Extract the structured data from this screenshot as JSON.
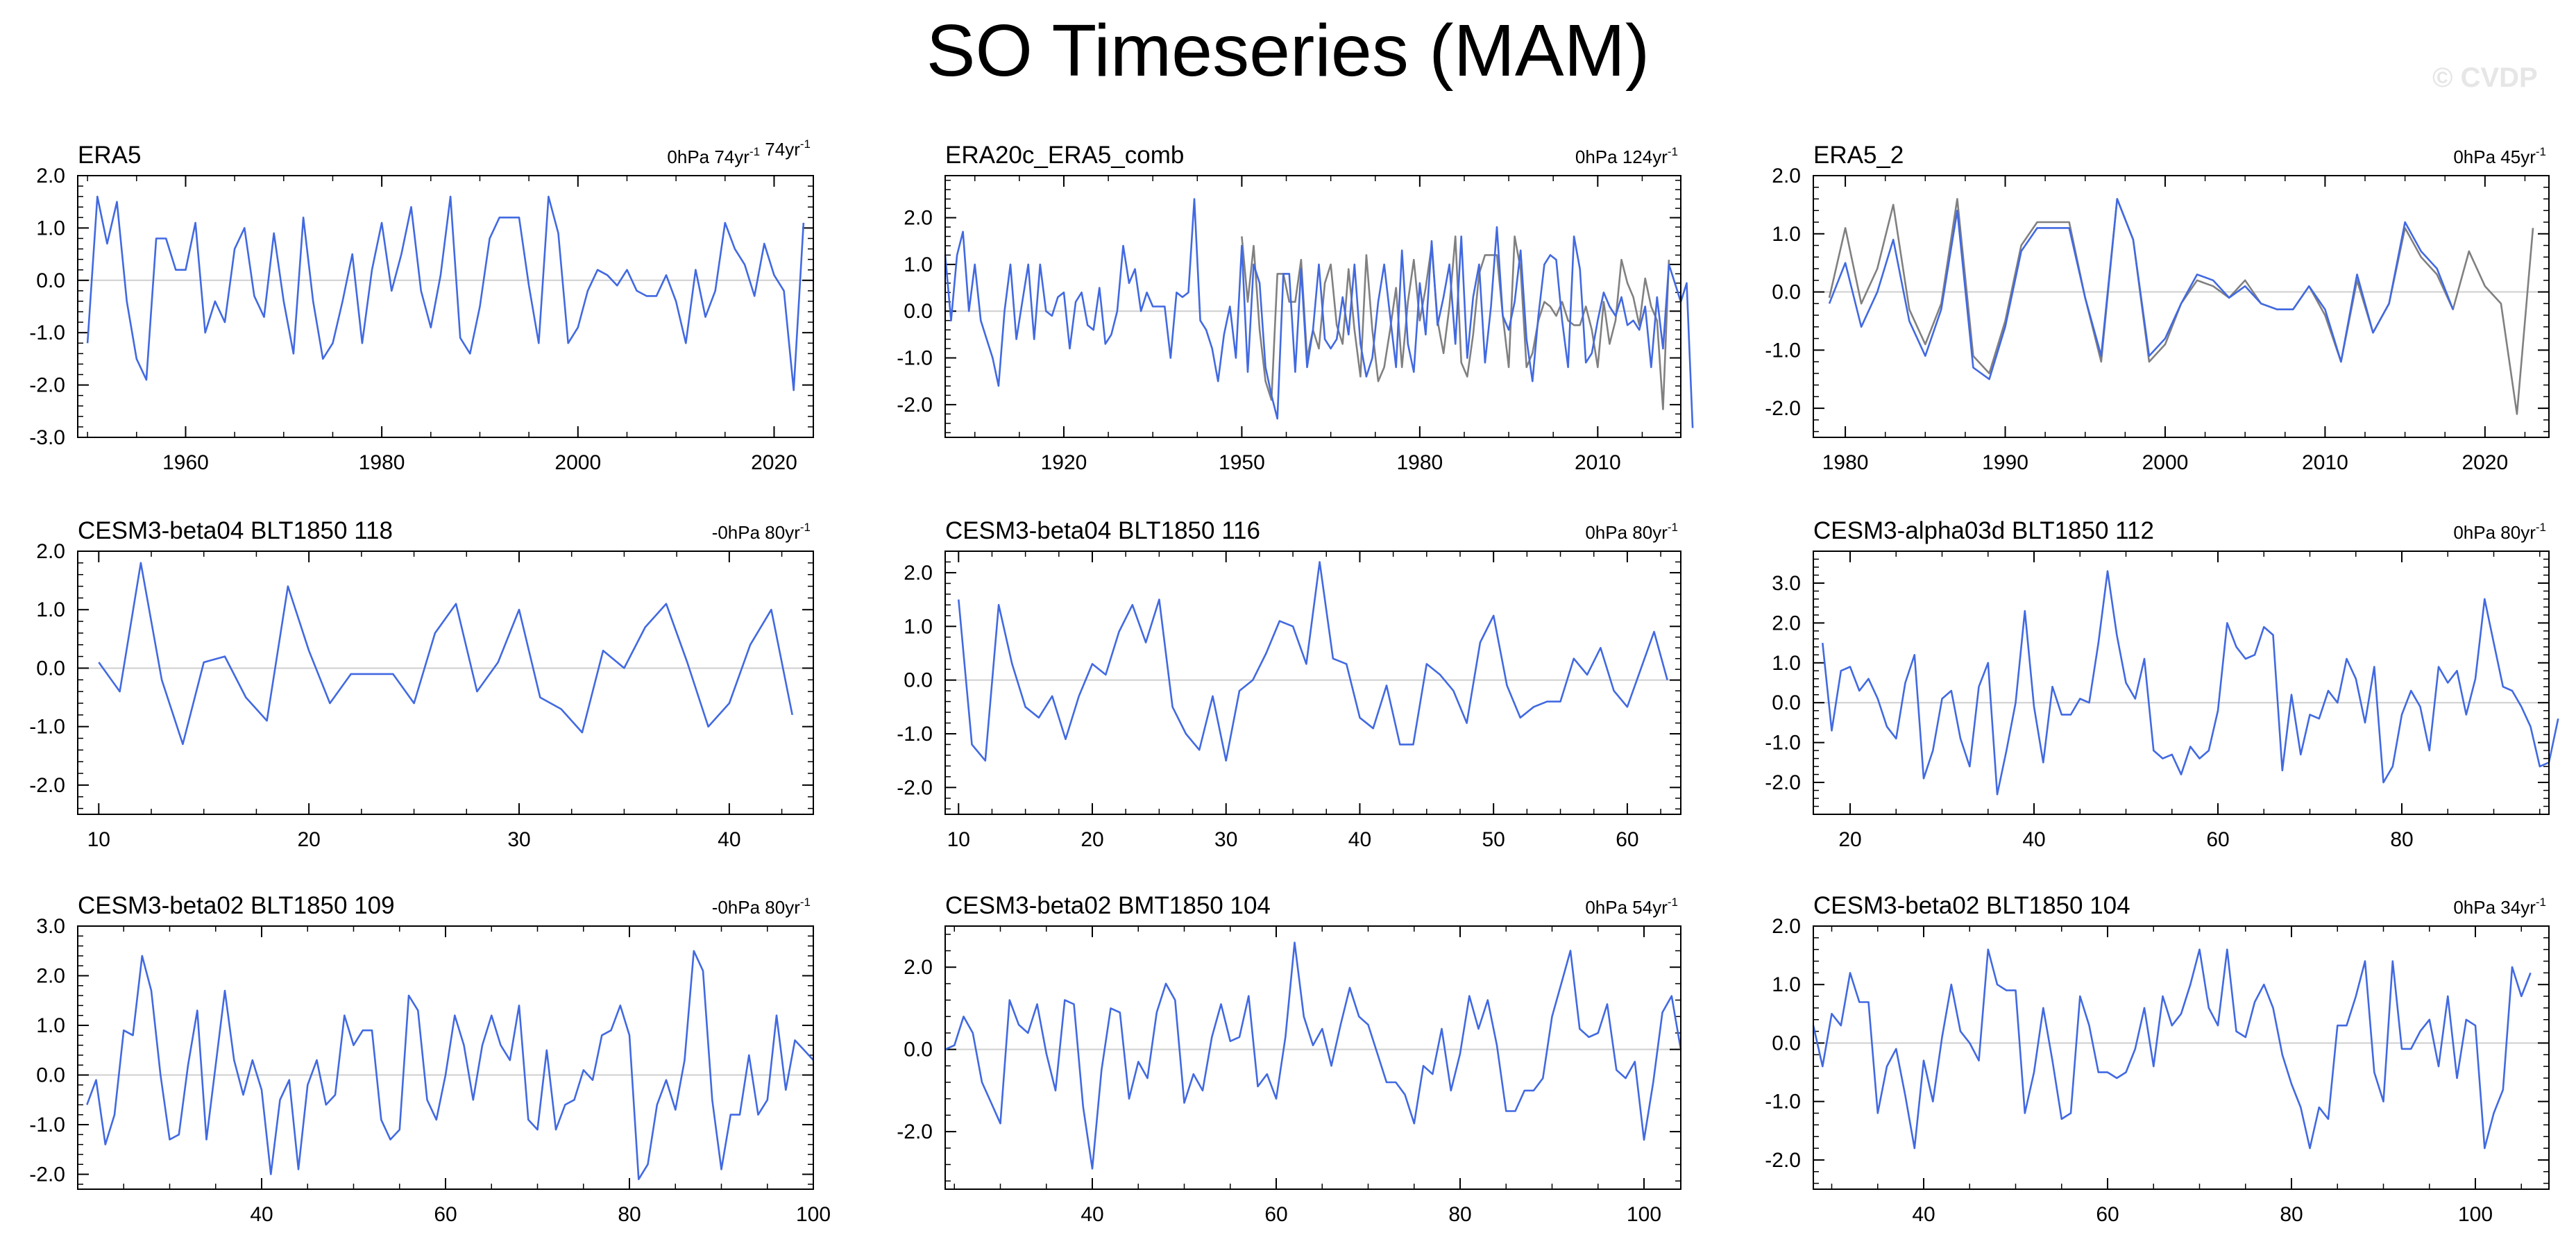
{
  "title": "SO Timeseries (MAM)",
  "credit": "© CVDP",
  "colors": {
    "line": "#4169e1",
    "overlay": "#808080",
    "zero": "#cfcfcf",
    "axis": "#000000"
  },
  "chart_data": [
    {
      "type": "line",
      "title": "ERA5",
      "info": "0hPa 74yr⁻¹ 74yr⁻¹",
      "xlim": [
        1949,
        2024
      ],
      "ylim": [
        -3.0,
        2.0
      ],
      "xticks": [
        1960,
        1980,
        2000,
        2020
      ],
      "yticks": [
        2.0,
        1.0,
        0.0,
        -1.0,
        -2.0,
        -3.0
      ],
      "ytick_labels": [
        "2.0",
        "1.0",
        "0.0",
        "-1.0",
        "-2.0",
        "-3.0"
      ],
      "series": [
        {
          "x_start": 1950,
          "values": [
            -1.2,
            1.6,
            0.7,
            1.5,
            -0.4,
            -1.5,
            -1.9,
            0.8,
            0.8,
            0.2,
            0.2,
            1.1,
            -1.0,
            -0.4,
            -0.8,
            0.6,
            1.0,
            -0.3,
            -0.7,
            0.9,
            -0.4,
            -1.4,
            1.2,
            -0.4,
            -1.5,
            -1.2,
            -0.4,
            0.5,
            -1.2,
            0.2,
            1.1,
            -0.2,
            0.5,
            1.4,
            -0.2,
            -0.9,
            0.1,
            1.6,
            -1.1,
            -1.4,
            -0.5,
            0.8,
            1.2,
            1.2,
            1.2,
            -0.1,
            -1.2,
            1.6,
            0.9,
            -1.2,
            -0.9,
            -0.2,
            0.2,
            0.1,
            -0.1,
            0.2,
            -0.2,
            -0.3,
            -0.3,
            0.1,
            -0.4,
            -1.2,
            0.2,
            -0.7,
            -0.2,
            1.1,
            0.6,
            0.3,
            -0.3,
            0.7,
            0.1,
            -0.2,
            -2.1,
            1.1
          ]
        }
      ]
    },
    {
      "type": "line",
      "title": "ERA20c_ERA5_comb",
      "info": "0hPa 124yr⁻¹",
      "xlim": [
        1900,
        2024
      ],
      "ylim": [
        -2.7,
        2.9
      ],
      "xticks": [
        1920,
        1950,
        1980,
        2010
      ],
      "yticks": [
        2.0,
        1.0,
        0.0,
        -1.0,
        -2.0
      ],
      "ytick_labels": [
        "2.0",
        "1.0",
        "0.0",
        "-1.0",
        "-2.0"
      ],
      "series": [
        {
          "x_start": 1900,
          "values": [
            1.2,
            -0.2,
            1.2,
            1.7,
            0.0,
            1.0,
            -0.2,
            -0.6,
            -1.0,
            -1.6,
            0.0,
            1.0,
            -0.6,
            0.2,
            1.0,
            -0.6,
            1.0,
            0.0,
            -0.1,
            0.3,
            0.4,
            -0.8,
            0.2,
            0.4,
            -0.3,
            -0.4,
            0.5,
            -0.7,
            -0.5,
            0.0,
            1.4,
            0.6,
            0.9,
            0.0,
            0.4,
            0.1,
            0.1,
            0.1,
            -1.0,
            0.4,
            0.3,
            0.4,
            2.4,
            -0.2,
            -0.4,
            -0.8,
            -1.5,
            -0.5,
            0.1,
            -1.0,
            1.4,
            -1.3,
            1.0,
            0.6,
            -1.2,
            -1.8,
            -2.3,
            0.8,
            0.8,
            -1.3,
            0.9,
            -1.2,
            -0.4,
            1.0,
            -0.6,
            -0.8,
            -0.6,
            0.3,
            -0.5,
            1.0,
            -0.7,
            -1.4,
            -1.0,
            0.2,
            1.0,
            -0.1,
            -1.2,
            1.3,
            -0.7,
            -1.3,
            0.6,
            -0.5,
            1.5,
            -0.3,
            0.3,
            1.0,
            -0.7,
            1.6,
            -1.0,
            0.3,
            1.0,
            -1.1,
            0.1,
            1.8,
            -0.1,
            -0.4,
            0.2,
            1.3,
            -0.6,
            -1.5,
            -0.1,
            1.0,
            1.2,
            1.1,
            -0.2,
            -1.2,
            1.6,
            0.9,
            -1.1,
            -0.9,
            -0.2,
            0.4,
            0.1,
            -0.1,
            0.3,
            -0.3,
            -0.2,
            -0.4,
            0.1,
            -1.2,
            0.3,
            -0.8,
            1.0,
            0.6,
            0.2,
            0.6,
            -2.5
          ]
        },
        {
          "x_start": 1950,
          "values": [
            1.6,
            0.2,
            1.4,
            -0.4,
            -1.5,
            -1.9,
            0.8,
            0.8,
            0.2,
            0.2,
            1.1,
            -1.0,
            -0.4,
            -0.8,
            0.6,
            1.0,
            -0.3,
            -0.7,
            0.9,
            -0.4,
            -1.4,
            1.2,
            -0.4,
            -1.5,
            -1.2,
            -0.4,
            0.5,
            -1.2,
            0.2,
            1.1,
            -0.2,
            0.5,
            1.4,
            -0.2,
            -0.9,
            0.1,
            1.6,
            -1.1,
            -1.4,
            -0.5,
            0.8,
            1.2,
            1.2,
            1.2,
            -0.1,
            -1.2,
            1.6,
            0.9,
            -1.2,
            -0.9,
            -0.2,
            0.2,
            0.1,
            -0.1,
            0.2,
            -0.2,
            -0.3,
            -0.3,
            0.1,
            -0.4,
            -1.2,
            0.2,
            -0.7,
            -0.2,
            1.1,
            0.6,
            0.3,
            -0.3,
            0.7,
            0.1,
            -0.2,
            -2.1,
            1.1
          ]
        }
      ]
    },
    {
      "type": "line",
      "title": "ERA5_2",
      "info": "0hPa 45yr⁻¹",
      "xlim": [
        1978,
        2024
      ],
      "ylim": [
        -2.5,
        2.0
      ],
      "xticks": [
        1980,
        1990,
        2000,
        2010,
        2020
      ],
      "yticks": [
        2.0,
        1.0,
        0.0,
        -1.0,
        -2.0
      ],
      "ytick_labels": [
        "2.0",
        "1.0",
        "0.0",
        "-1.0",
        "-2.0"
      ],
      "series": [
        {
          "x_start": 1979,
          "values": [
            -0.2,
            0.5,
            -0.6,
            0.0,
            0.9,
            -0.5,
            -1.1,
            -0.3,
            1.4,
            -1.3,
            -1.5,
            -0.6,
            0.7,
            1.1,
            1.1,
            1.1,
            -0.1,
            -1.1,
            1.6,
            0.9,
            -1.1,
            -0.8,
            -0.2,
            0.3,
            0.2,
            -0.1,
            0.1,
            -0.2,
            -0.3,
            -0.3,
            0.1,
            -0.3,
            -1.2,
            0.3,
            -0.7,
            -0.2,
            1.2,
            0.7,
            0.4,
            -0.3
          ]
        },
        {
          "x_start": 1979,
          "values": [
            -0.1,
            1.1,
            -0.2,
            0.4,
            1.5,
            -0.3,
            -0.9,
            -0.2,
            1.6,
            -1.1,
            -1.4,
            -0.5,
            0.8,
            1.2,
            1.2,
            1.2,
            -0.1,
            -1.2,
            1.6,
            0.9,
            -1.2,
            -0.9,
            -0.2,
            0.2,
            0.1,
            -0.1,
            0.2,
            -0.2,
            -0.3,
            -0.3,
            0.1,
            -0.4,
            -1.2,
            0.2,
            -0.7,
            -0.2,
            1.1,
            0.6,
            0.3,
            -0.3,
            0.7,
            0.1,
            -0.2,
            -2.1,
            1.1
          ]
        }
      ]
    },
    {
      "type": "line",
      "title": "CESM3-beta04 BLT1850 118",
      "info": "-0hPa 80yr⁻¹",
      "xlim": [
        9,
        44
      ],
      "ylim": [
        -2.5,
        2.0
      ],
      "xticks": [
        10,
        20,
        30,
        40
      ],
      "yticks": [
        2.0,
        1.0,
        0.0,
        -1.0,
        -2.0
      ],
      "ytick_labels": [
        "2.0",
        "1.0",
        "0.0",
        "-1.0",
        "-2.0"
      ],
      "series": [
        {
          "x_start": 10,
          "values": [
            0.1,
            -0.4,
            1.8,
            -0.2,
            -1.3,
            0.1,
            0.2,
            -0.5,
            -0.9,
            1.4,
            0.3,
            -0.6,
            -0.1,
            -0.1,
            -0.1,
            -0.6,
            0.6,
            1.1,
            -0.4,
            0.1,
            1.0,
            -0.5,
            -0.7,
            -1.1,
            0.3,
            0.0,
            0.7,
            1.1,
            0.1,
            -1.0,
            -0.6,
            0.4,
            1.0,
            -0.8
          ]
        }
      ]
    },
    {
      "type": "line",
      "title": "CESM3-beta04 BLT1850 116",
      "info": "0hPa 80yr⁻¹",
      "xlim": [
        9,
        64
      ],
      "ylim": [
        -2.5,
        2.4
      ],
      "xticks": [
        10,
        20,
        30,
        40,
        50,
        60
      ],
      "yticks": [
        2.0,
        1.0,
        0.0,
        -1.0,
        -2.0
      ],
      "ytick_labels": [
        "2.0",
        "1.0",
        "0.0",
        "-1.0",
        "-2.0"
      ],
      "series": [
        {
          "x_start": 10,
          "values": [
            1.5,
            -1.2,
            -1.5,
            1.4,
            0.3,
            -0.5,
            -0.7,
            -0.3,
            -1.1,
            -0.3,
            0.3,
            0.1,
            0.9,
            1.4,
            0.7,
            1.5,
            -0.5,
            -1.0,
            -1.3,
            -0.3,
            -1.5,
            -0.2,
            0.0,
            0.5,
            1.1,
            1.0,
            0.3,
            2.2,
            0.4,
            0.3,
            -0.7,
            -0.9,
            -0.1,
            -1.2,
            -1.2,
            0.3,
            0.1,
            -0.2,
            -0.8,
            0.7,
            1.2,
            -0.1,
            -0.7,
            -0.5,
            -0.4,
            -0.4,
            0.4,
            0.1,
            0.6,
            -0.2,
            -0.5,
            0.2,
            0.9,
            0.0
          ]
        }
      ]
    },
    {
      "type": "line",
      "title": "CESM3-alpha03d BLT1850 112",
      "info": "0hPa 80yr⁻¹",
      "xlim": [
        16,
        96
      ],
      "ylim": [
        -2.8,
        3.8
      ],
      "xticks": [
        20,
        40,
        60,
        80
      ],
      "yticks": [
        3.0,
        2.0,
        1.0,
        0.0,
        -1.0,
        -2.0
      ],
      "ytick_labels": [
        "3.0",
        "2.0",
        "1.0",
        "0.0",
        "-1.0",
        "-2.0"
      ],
      "series": [
        {
          "x_start": 17,
          "values": [
            1.5,
            -0.7,
            0.8,
            0.9,
            0.3,
            0.6,
            0.1,
            -0.6,
            -0.9,
            0.5,
            1.2,
            -1.9,
            -1.2,
            0.1,
            0.3,
            -0.9,
            -1.6,
            0.4,
            1.0,
            -2.3,
            -1.2,
            0.0,
            2.3,
            -0.1,
            -1.5,
            0.4,
            -0.3,
            -0.3,
            0.1,
            0.0,
            1.5,
            3.3,
            1.7,
            0.5,
            0.1,
            1.1,
            -1.2,
            -1.4,
            -1.3,
            -1.8,
            -1.1,
            -1.4,
            -1.2,
            -0.2,
            2.0,
            1.4,
            1.1,
            1.2,
            1.9,
            1.7,
            -1.7,
            0.2,
            -1.3,
            -0.3,
            -0.4,
            0.3,
            0.0,
            1.1,
            0.6,
            -0.5,
            0.9,
            -2.0,
            -1.6,
            -0.3,
            0.3,
            -0.1,
            -1.2,
            0.9,
            0.5,
            0.8,
            -0.3,
            0.6,
            2.6,
            1.5,
            0.4,
            0.3,
            -0.1,
            -0.6,
            -1.6,
            -1.5,
            -0.4
          ]
        }
      ]
    },
    {
      "type": "line",
      "title": "CESM3-beta02 BLT1850 109",
      "info": "-0hPa 80yr⁻¹",
      "xlim": [
        20,
        100
      ],
      "ylim": [
        -2.3,
        3.0
      ],
      "xticks": [
        40,
        60,
        80,
        100
      ],
      "yticks": [
        3.0,
        2.0,
        1.0,
        0.0,
        -1.0,
        -2.0
      ],
      "ytick_labels": [
        "3.0",
        "2.0",
        "1.0",
        "0.0",
        "-1.0",
        "-2.0"
      ],
      "series": [
        {
          "x_start": 21,
          "values": [
            -0.6,
            -0.1,
            -1.4,
            -0.8,
            0.9,
            0.8,
            2.4,
            1.7,
            0.0,
            -1.3,
            -1.2,
            0.2,
            1.3,
            -1.3,
            0.2,
            1.7,
            0.3,
            -0.4,
            0.3,
            -0.3,
            -2.0,
            -0.5,
            -0.1,
            -1.9,
            -0.2,
            0.3,
            -0.6,
            -0.4,
            1.2,
            0.6,
            0.9,
            0.9,
            -0.9,
            -1.3,
            -1.1,
            1.6,
            1.3,
            -0.5,
            -0.9,
            0.0,
            1.2,
            0.6,
            -0.5,
            0.6,
            1.2,
            0.6,
            0.3,
            1.4,
            -0.9,
            -1.1,
            0.5,
            -1.1,
            -0.6,
            -0.5,
            0.1,
            -0.1,
            0.8,
            0.9,
            1.4,
            0.8,
            -2.1,
            -1.8,
            -0.6,
            -0.1,
            -0.7,
            0.3,
            2.5,
            2.1,
            -0.5,
            -1.9,
            -0.8,
            -0.8,
            0.4,
            -0.8,
            -0.5,
            1.2,
            -0.3,
            0.7,
            0.5,
            0.3
          ]
        }
      ]
    },
    {
      "type": "line",
      "title": "CESM3-beta02 BMT1850 104",
      "info": "0hPa 54yr⁻¹",
      "xlim": [
        24,
        104
      ],
      "ylim": [
        -3.4,
        3.0
      ],
      "xticks": [
        40,
        60,
        80,
        100
      ],
      "yticks": [
        2.0,
        0.0,
        -2.0
      ],
      "ytick_labels": [
        "2.0",
        "0.0",
        "-2.0"
      ],
      "series": [
        {
          "x_start": 24,
          "values": [
            0.0,
            0.1,
            0.8,
            0.4,
            -0.8,
            -1.3,
            -1.8,
            1.2,
            0.6,
            0.4,
            1.1,
            -0.1,
            -1.0,
            1.2,
            1.1,
            -1.4,
            -2.9,
            -0.5,
            1.0,
            0.9,
            -1.2,
            -0.3,
            -0.7,
            0.9,
            1.6,
            1.2,
            -1.3,
            -0.6,
            -1.0,
            0.3,
            1.1,
            0.2,
            0.3,
            1.3,
            -0.9,
            -0.6,
            -1.2,
            0.3,
            2.6,
            0.8,
            0.1,
            0.5,
            -0.4,
            0.6,
            1.5,
            0.8,
            0.6,
            -0.1,
            -0.8,
            -0.8,
            -1.1,
            -1.8,
            -0.4,
            -0.6,
            0.5,
            -1.0,
            -0.1,
            1.3,
            0.5,
            1.2,
            0.1,
            -1.5,
            -1.5,
            -1.0,
            -1.0,
            -0.7,
            0.8,
            1.6,
            2.4,
            0.5,
            0.3,
            0.4,
            1.1,
            -0.5,
            -0.7,
            -0.3,
            -2.2,
            -0.8,
            0.9,
            1.3,
            0.0
          ]
        }
      ]
    },
    {
      "type": "line",
      "title": "CESM3-beta02 BLT1850 104",
      "info": "0hPa 34yr⁻¹",
      "xlim": [
        28,
        108
      ],
      "ylim": [
        -2.5,
        2.0
      ],
      "xticks": [
        40,
        60,
        80,
        100
      ],
      "yticks": [
        2.0,
        1.0,
        0.0,
        -1.0,
        -2.0
      ],
      "ytick_labels": [
        "2.0",
        "1.0",
        "0.0",
        "-1.0",
        "-2.0"
      ],
      "series": [
        {
          "x_start": 28,
          "values": [
            0.3,
            -0.4,
            0.5,
            0.3,
            1.2,
            0.7,
            0.7,
            -1.2,
            -0.4,
            -0.1,
            -0.9,
            -1.8,
            -0.3,
            -1.0,
            0.1,
            1.0,
            0.2,
            0.0,
            -0.3,
            1.6,
            1.0,
            0.9,
            0.9,
            -1.2,
            -0.5,
            0.6,
            -0.3,
            -1.3,
            -1.2,
            0.8,
            0.3,
            -0.5,
            -0.5,
            -0.6,
            -0.5,
            -0.1,
            0.6,
            -0.4,
            0.8,
            0.3,
            0.5,
            1.0,
            1.6,
            0.6,
            0.3,
            1.6,
            0.2,
            0.1,
            0.7,
            1.0,
            0.6,
            -0.2,
            -0.7,
            -1.1,
            -1.8,
            -1.1,
            -1.3,
            0.3,
            0.3,
            0.8,
            1.4,
            -0.5,
            -1.0,
            1.4,
            -0.1,
            -0.1,
            0.2,
            0.4,
            -0.4,
            0.8,
            -0.6,
            0.4,
            0.3,
            -1.8,
            -1.2,
            -0.8,
            1.3,
            0.8,
            1.2
          ]
        }
      ]
    }
  ]
}
